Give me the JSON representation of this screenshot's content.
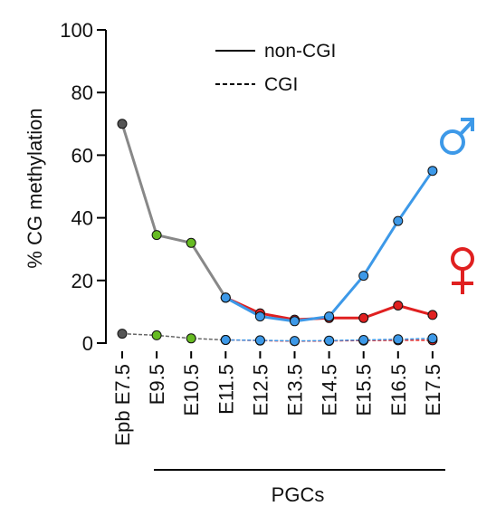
{
  "chart_data": {
    "type": "line",
    "ylabel": "% CG methylation",
    "ylim": [
      0,
      100
    ],
    "yticks": [
      "0",
      "20",
      "40",
      "60",
      "80",
      "100"
    ],
    "categories": [
      "Epb E7.5",
      "E9.5",
      "E10.5",
      "E11.5",
      "E12.5",
      "E13.5",
      "E14.5",
      "E15.5",
      "E16.5",
      "E17.5"
    ],
    "group_label": "PGCs",
    "legend": {
      "position": "top-center",
      "items": [
        {
          "label": "non-CGI",
          "style": "solid"
        },
        {
          "label": "CGI",
          "style": "dashed"
        }
      ]
    },
    "series": [
      {
        "key": "shared_noncgi",
        "region": "non-CGI",
        "color": "#888888",
        "x": [
          "Epb E7.5",
          "E9.5",
          "E10.5",
          "E11.5"
        ],
        "values": [
          70,
          34.5,
          32,
          14.5
        ],
        "point_colors": [
          "#555555",
          "#66bb22",
          "#66bb22",
          "#66bb22"
        ]
      },
      {
        "key": "female_noncgi",
        "region": "non-CGI",
        "sex": "female",
        "color": "#e02020",
        "x": [
          "E11.5",
          "E12.5",
          "E13.5",
          "E14.5",
          "E15.5",
          "E16.5",
          "E17.5"
        ],
        "values": [
          14.5,
          9.5,
          7.5,
          8,
          8,
          12,
          9
        ]
      },
      {
        "key": "male_noncgi",
        "region": "non-CGI",
        "sex": "male",
        "color": "#3d99e8",
        "x": [
          "E11.5",
          "E12.5",
          "E13.5",
          "E14.5",
          "E15.5",
          "E16.5",
          "E17.5"
        ],
        "values": [
          14.5,
          8.5,
          7,
          8.5,
          21.5,
          39,
          55
        ]
      },
      {
        "key": "shared_cgi",
        "region": "CGI",
        "color": "#666666",
        "x": [
          "Epb E7.5",
          "E9.5",
          "E10.5",
          "E11.5"
        ],
        "values": [
          3,
          2.5,
          1.5,
          1
        ],
        "point_colors": [
          "#555555",
          "#66bb22",
          "#66bb22",
          "#66bb22"
        ]
      },
      {
        "key": "female_cgi",
        "region": "CGI",
        "sex": "female",
        "color": "#e02020",
        "x": [
          "E11.5",
          "E12.5",
          "E13.5",
          "E14.5",
          "E15.5",
          "E16.5",
          "E17.5"
        ],
        "values": [
          1,
          0.8,
          0.6,
          0.7,
          0.8,
          0.9,
          0.9
        ]
      },
      {
        "key": "male_cgi",
        "region": "CGI",
        "sex": "male",
        "color": "#3d99e8",
        "x": [
          "E11.5",
          "E12.5",
          "E13.5",
          "E14.5",
          "E15.5",
          "E16.5",
          "E17.5"
        ],
        "values": [
          1,
          0.9,
          0.7,
          0.8,
          1,
          1.2,
          1.5
        ]
      }
    ],
    "symbols": {
      "male": {
        "icon": "male-symbol-icon",
        "color": "#3d99e8"
      },
      "female": {
        "icon": "female-symbol-icon",
        "color": "#e02020"
      }
    },
    "grid": false
  }
}
